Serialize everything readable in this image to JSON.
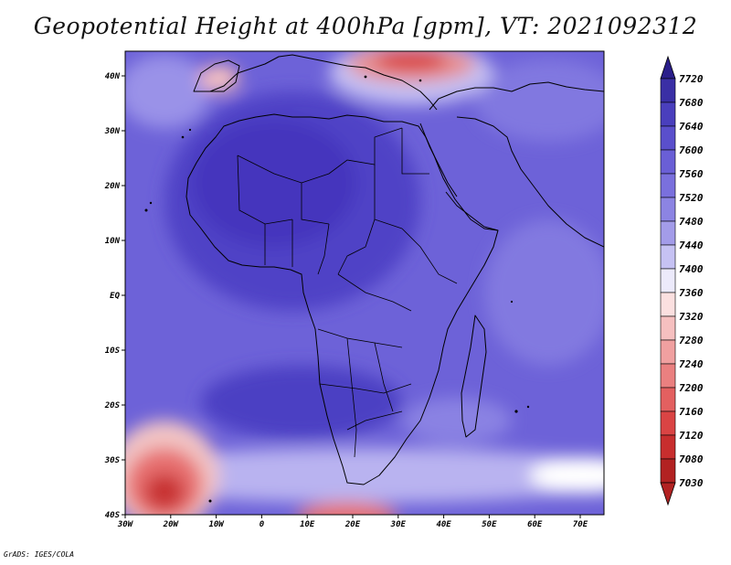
{
  "map": {
    "title": "Geopotential Height at 400hPa [gpm], VT: 2021092312",
    "variable": "Geopotential Height",
    "level": "400hPa",
    "units": "gpm",
    "valid_time": "2021092312",
    "lon_labels": [
      "30W",
      "20W",
      "10W",
      "0",
      "10E",
      "20E",
      "30E",
      "40E",
      "50E",
      "60E",
      "70E"
    ],
    "lat_labels": [
      "40N",
      "30N",
      "20N",
      "10N",
      "EQ",
      "10S",
      "20S",
      "30S",
      "40S"
    ],
    "footer": "GrADS: IGES/COLA"
  },
  "colorbar": {
    "labels": [
      "7720",
      "7680",
      "7640",
      "7600",
      "7560",
      "7520",
      "7480",
      "7440",
      "7400",
      "7360",
      "7320",
      "7280",
      "7240",
      "7200",
      "7160",
      "7120",
      "7080",
      "7030"
    ],
    "colors": [
      "#2a1e8a",
      "#3a2fa5",
      "#4a3fbd",
      "#5a4fcc",
      "#6a5fd6",
      "#7a70dd",
      "#8c84e3",
      "#a39ce9",
      "#c6c2f3",
      "#eceafb",
      "#fbe0e0",
      "#f6c0c0",
      "#f0a0a0",
      "#ea8080",
      "#e36060",
      "#da4444",
      "#c82e2e",
      "#b22222"
    ]
  }
}
